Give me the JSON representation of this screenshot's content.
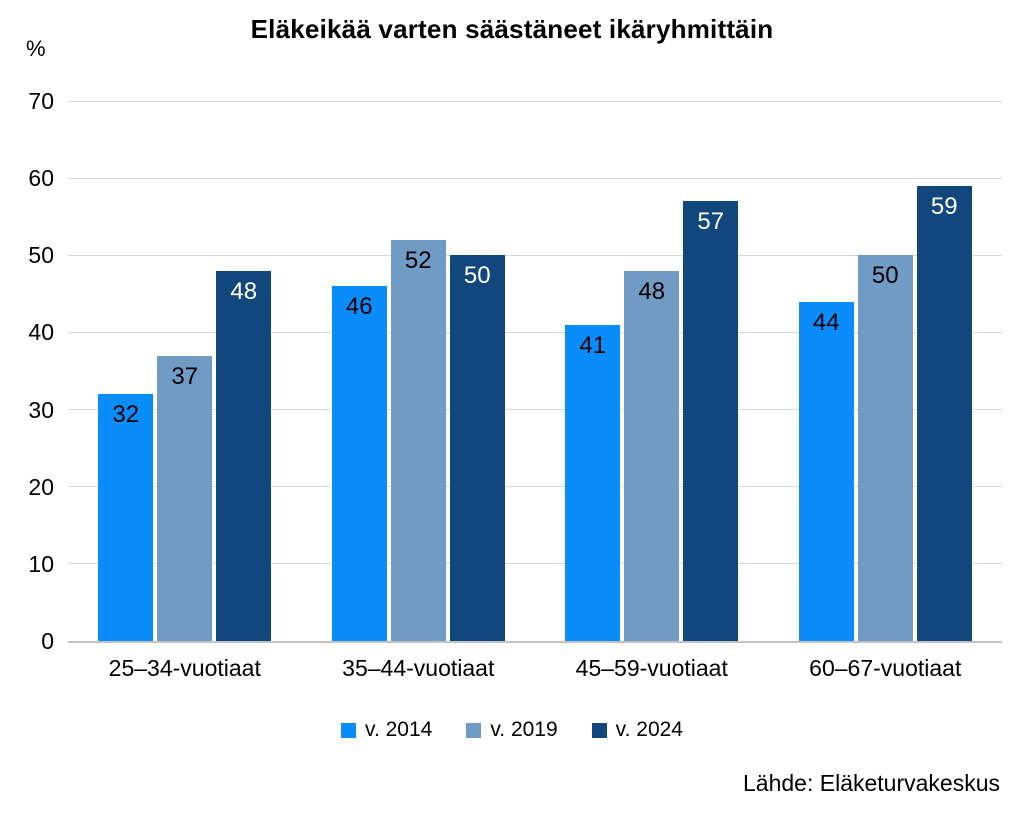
{
  "chart_data": {
    "type": "bar",
    "title": "Eläkeikää varten säästäneet ikäryhmittäin",
    "xlabel": "",
    "ylabel": "%",
    "ylim": [
      0,
      70
    ],
    "ytick_step": 10,
    "grid": true,
    "legend_position": "bottom",
    "categories": [
      "25–34-vuotiaat",
      "35–44-vuotiaat",
      "45–59-vuotiaat",
      "60–67-vuotiaat"
    ],
    "series": [
      {
        "name": "v. 2014",
        "color": "#0A8DFA",
        "label_color": "#000000",
        "values": [
          32,
          46,
          41,
          44
        ]
      },
      {
        "name": "v. 2019",
        "color": "#6F9BC5",
        "label_color": "#000000",
        "values": [
          37,
          52,
          48,
          50
        ]
      },
      {
        "name": "v. 2024",
        "color": "#12477E",
        "label_color": "#FFFFFF",
        "values": [
          48,
          50,
          57,
          59
        ]
      }
    ]
  },
  "source_note": "Lähde: Eläketurvakeskus",
  "colors": {
    "background": "#FFFFFF",
    "gridline": "#D6D6D6",
    "axis_line": "#C3C3C3",
    "text": "#000000"
  }
}
